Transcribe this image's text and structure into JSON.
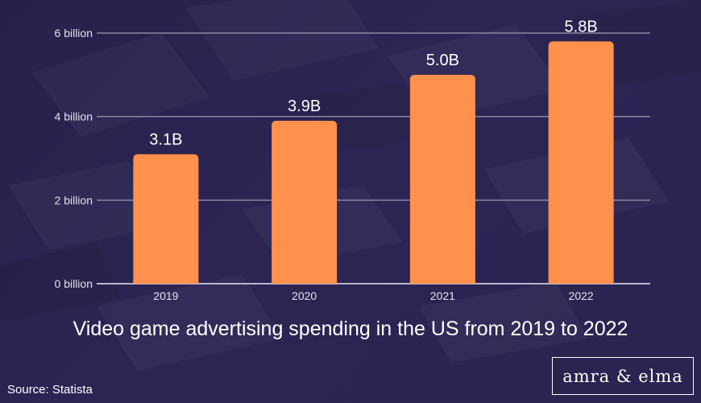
{
  "chart_data": {
    "type": "bar",
    "title": "Video game advertising spending in the US from 2019 to 2022",
    "categories": [
      "2019",
      "2020",
      "2021",
      "2022"
    ],
    "values": [
      3.1,
      3.9,
      5.0,
      5.8
    ],
    "data_labels": [
      "3.1B",
      "3.9B",
      "5.0B",
      "5.8B"
    ],
    "ylim": [
      0,
      6
    ],
    "yticks": [
      {
        "value": 0,
        "label": "0 billion"
      },
      {
        "value": 2,
        "label": "2 billion"
      },
      {
        "value": 4,
        "label": "4 billion"
      },
      {
        "value": 6,
        "label": "6 billion"
      }
    ],
    "grid": true,
    "bar_color": "#ff914d"
  },
  "footer": {
    "source": "Source: Statista",
    "brand": "amra & elma"
  },
  "colors": {
    "background": "#2a2450",
    "text": "#ffffff",
    "gridline": "#8a86a6"
  }
}
